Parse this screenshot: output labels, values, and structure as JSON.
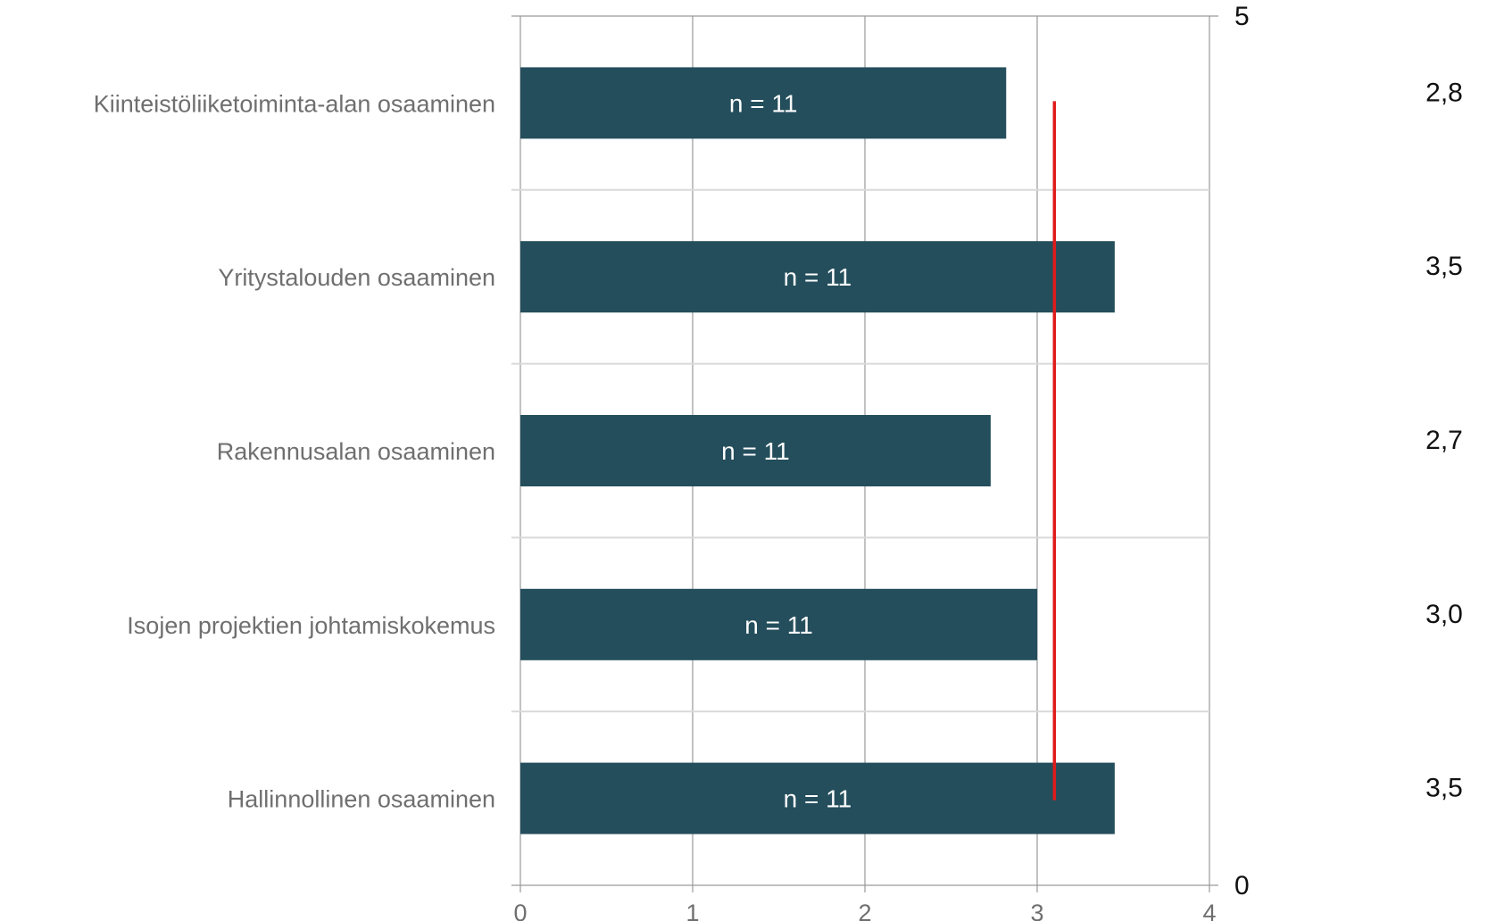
{
  "chart_data": {
    "type": "bar",
    "orientation": "horizontal",
    "categories": [
      "Kiinteistöliiketoiminta-alan osaaminen",
      "Yritystalouden osaaminen",
      "Rakennusalan osaaminen",
      "Isojen projektien johtamiskokemus",
      "Hallinnollinen osaaminen"
    ],
    "values": [
      2.82,
      3.45,
      2.73,
      3.0,
      3.45
    ],
    "bar_labels": [
      "n = 11",
      "n = 11",
      "n = 11",
      "n = 11",
      "n = 11"
    ],
    "value_labels": [
      "2,8",
      "3,5",
      "2,7",
      "3,0",
      "3,5"
    ],
    "xlim": [
      0,
      4
    ],
    "xticks": [
      "0",
      "1",
      "2",
      "3",
      "4"
    ],
    "secondary_y": {
      "ylim": [
        0,
        5
      ],
      "ticks": [
        "0",
        "5"
      ]
    },
    "reference_line": {
      "x": 3.1,
      "color": "#e01b1b"
    },
    "bar_color": "#244e5c",
    "grid": true,
    "title": "",
    "xlabel": "",
    "ylabel": ""
  }
}
